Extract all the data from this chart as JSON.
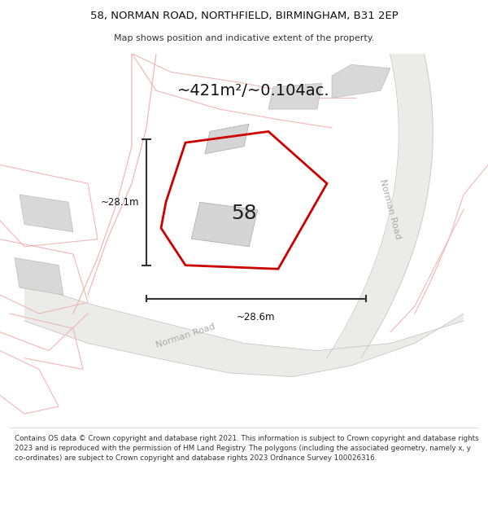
{
  "title_line1": "58, NORMAN ROAD, NORTHFIELD, BIRMINGHAM, B31 2EP",
  "title_line2": "Map shows position and indicative extent of the property.",
  "area_label": "~421m²/~0.104ac.",
  "number_label": "58",
  "dim_vertical": "~28.1m",
  "dim_horizontal": "~28.6m",
  "footer_text": "Contains OS data © Crown copyright and database right 2021. This information is subject to Crown copyright and database rights 2023 and is reproduced with the permission of HM Land Registry. The polygons (including the associated geometry, namely x, y co-ordinates) are subject to Crown copyright and database rights 2023 Ordnance Survey 100026316.",
  "highlight_color": "#cc0000",
  "highlight_fill": "#e0dede",
  "light_red": "#f0b8b8",
  "building_fill": "#d8d8d8",
  "building_edge": "#bbbbbb",
  "road_fill": "#e8e6e4",
  "map_bg": "#f8f7f5",
  "arrow_color": "#333333"
}
